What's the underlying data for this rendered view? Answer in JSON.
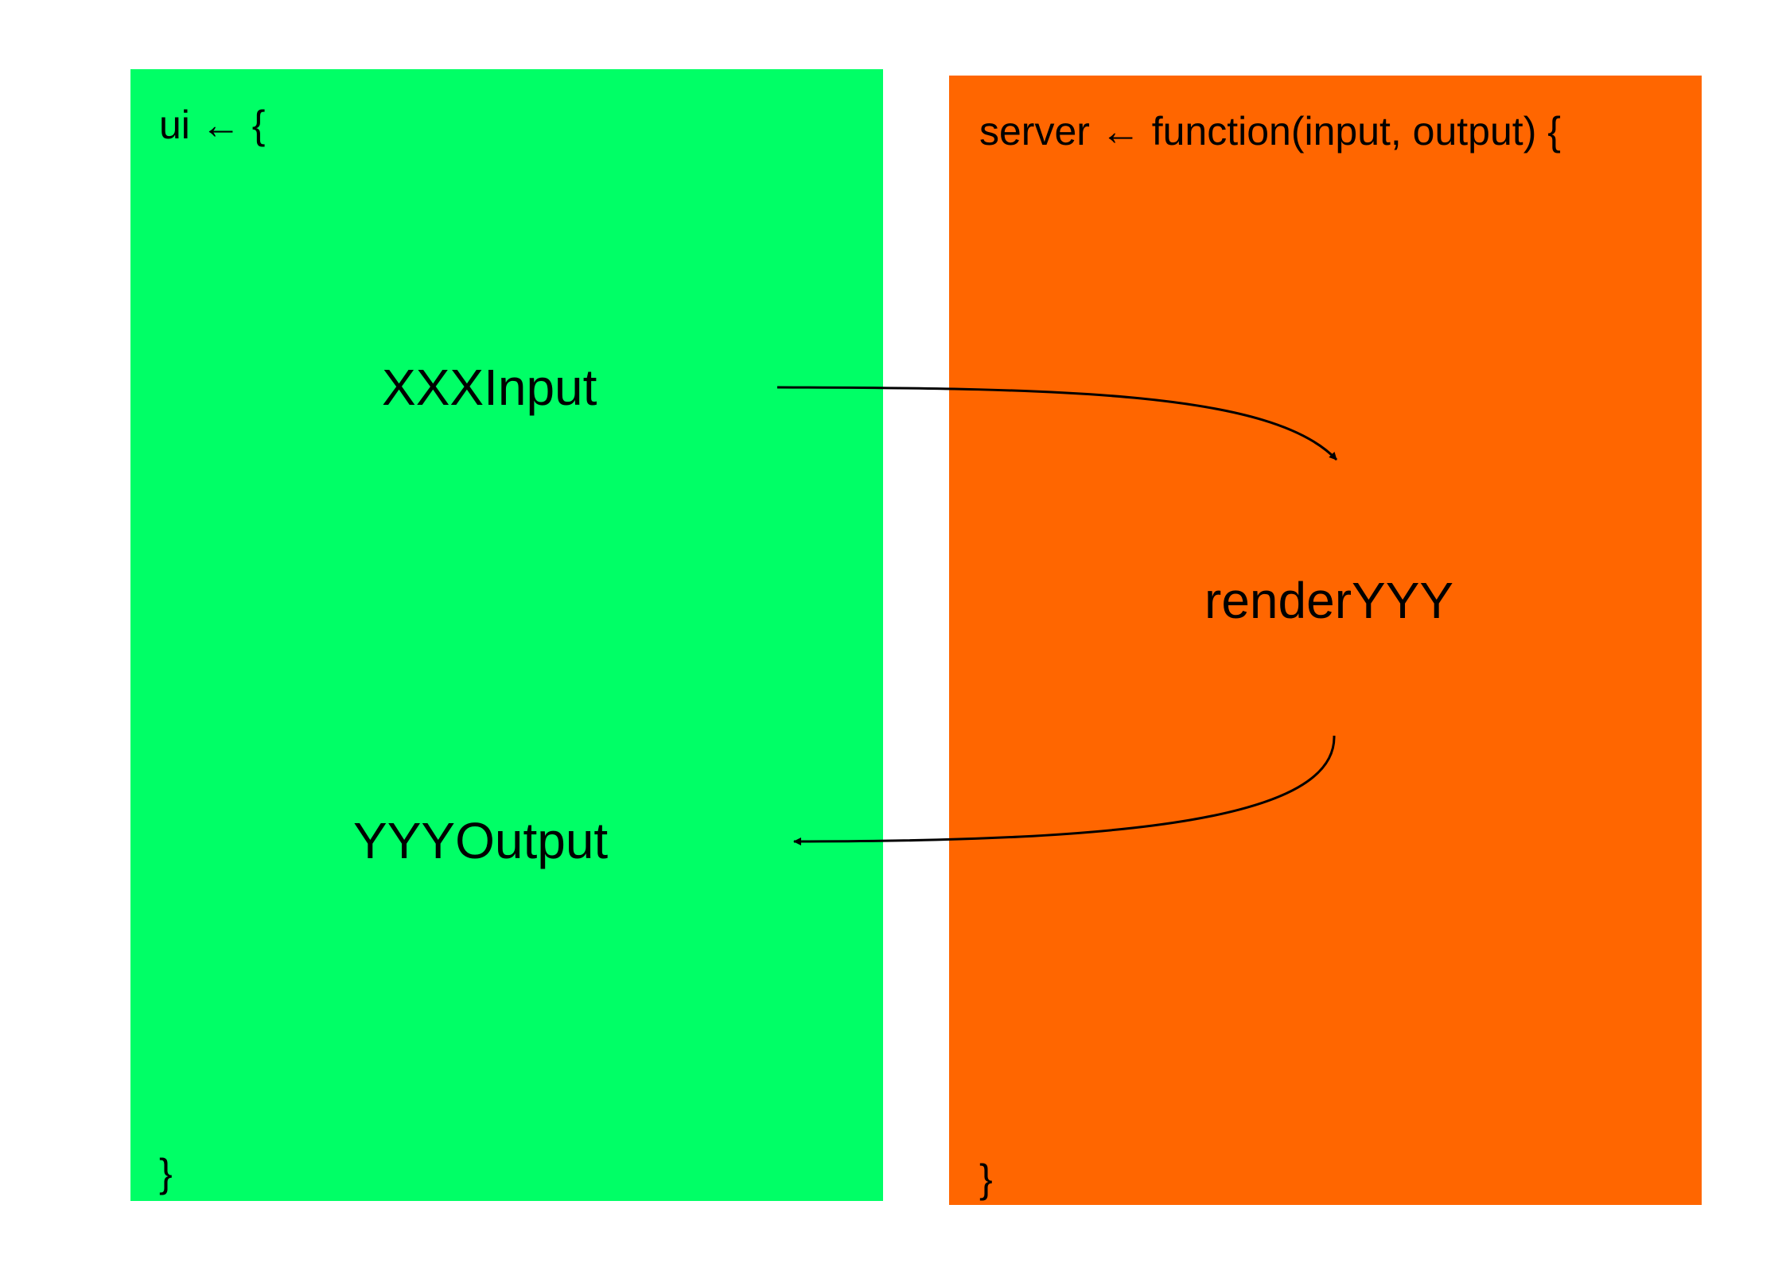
{
  "ui_block": {
    "open": "ui ← {",
    "close": "}",
    "color": "#00ff66",
    "input_node": "XXXInput",
    "output_node": "YYYOutput"
  },
  "server_block": {
    "open": "server ← function(input, output) {",
    "close": "}",
    "color": "#ff6600",
    "render_node": "renderYYY"
  },
  "edges": [
    {
      "from": "XXXInput",
      "to": "renderYYY"
    },
    {
      "from": "renderYYY",
      "to": "YYYOutput"
    }
  ]
}
